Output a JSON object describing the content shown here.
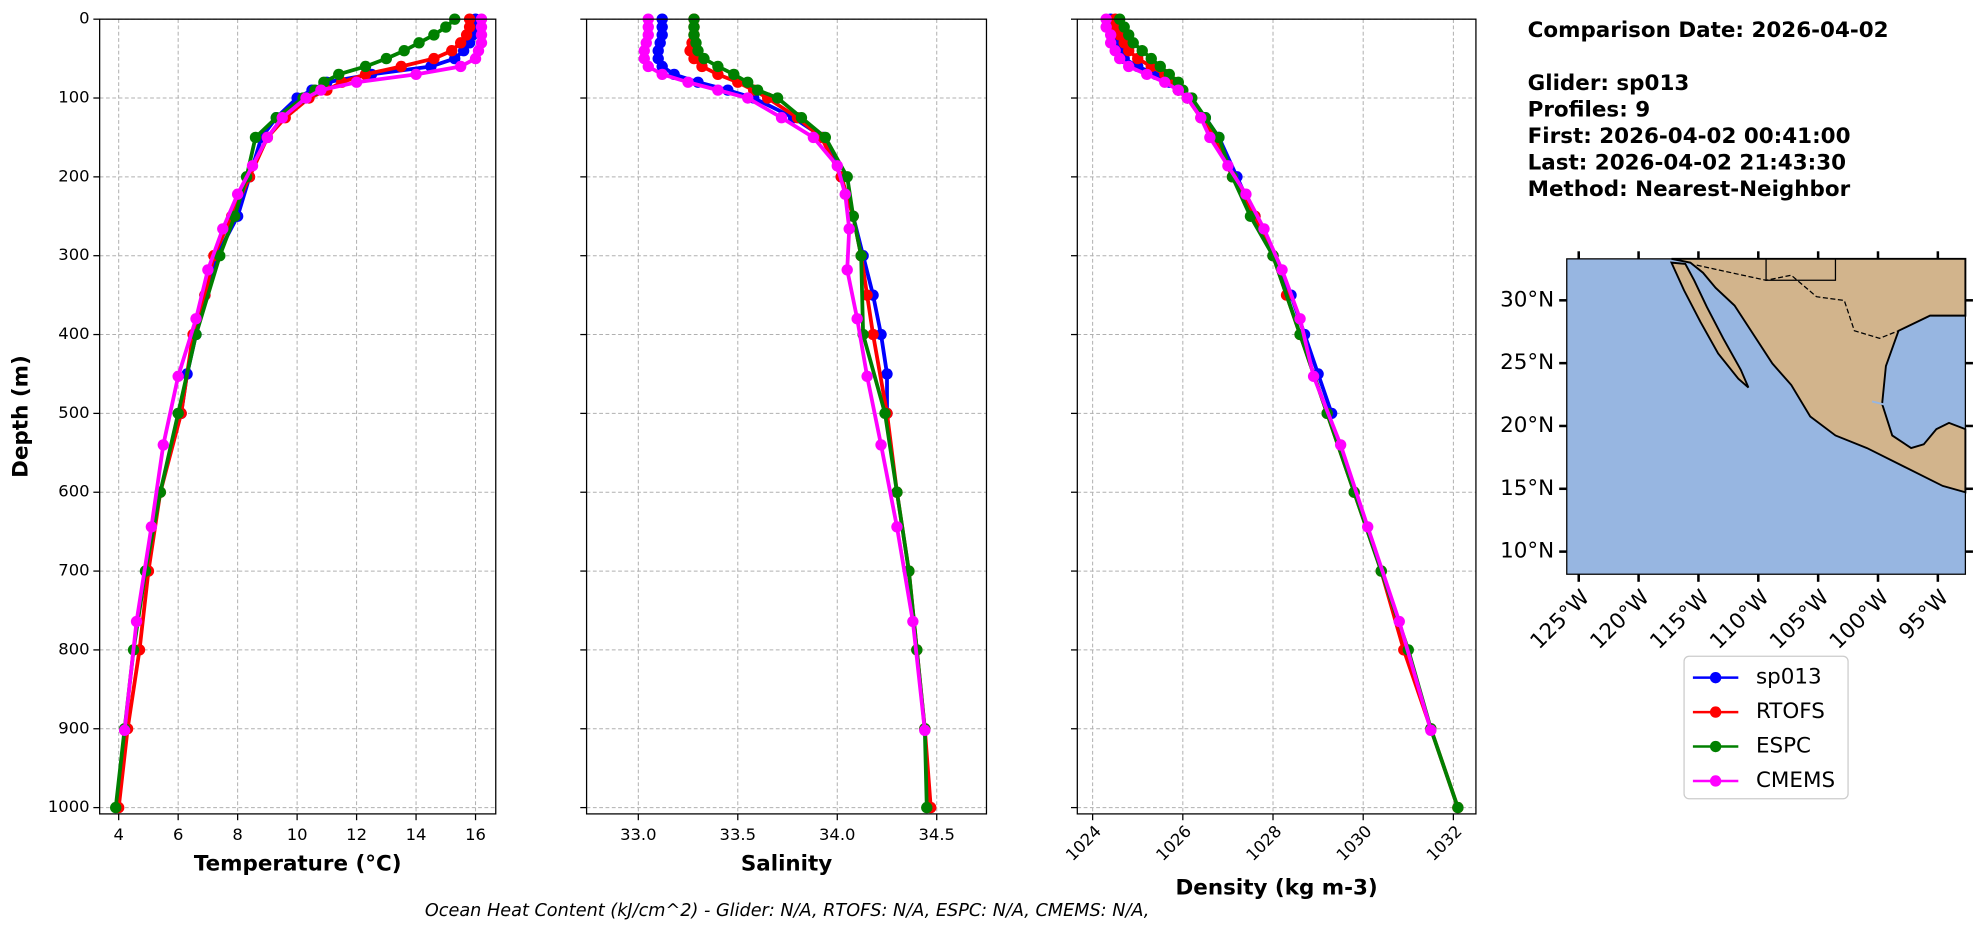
{
  "info": {
    "date": "Comparison Date: 2026-04-02",
    "lines": [
      "Glider: sp013",
      "Profiles: 9",
      "First: 2026-04-02 00:41:00",
      "Last: 2026-04-02 21:43:30",
      "Method: Nearest-Neighbor"
    ]
  },
  "footer": "Ocean Heat Content (kJ/cm^2) - Glider: N/A,  RTOFS: N/A,  ESPC: N/A,  CMEMS: N/A,",
  "legend": {
    "entries": [
      {
        "name": "sp013",
        "color": "#0000ff"
      },
      {
        "name": "RTOFS",
        "color": "#ff0000"
      },
      {
        "name": "ESPC",
        "color": "#008000"
      },
      {
        "name": "CMEMS",
        "color": "#ff00ff"
      }
    ]
  },
  "map": {
    "lonlim": [
      -126,
      -92.7
    ],
    "latlim": [
      8.2,
      33.3
    ],
    "lat_ticks": [
      {
        "value": 10,
        "label": "10°N"
      },
      {
        "value": 15,
        "label": "15°N"
      },
      {
        "value": 20,
        "label": "20°N"
      },
      {
        "value": 25,
        "label": "25°N"
      },
      {
        "value": 30,
        "label": "30°N"
      }
    ],
    "lon_ticks": [
      {
        "value": -125,
        "label": "125°W"
      },
      {
        "value": -120,
        "label": "120°W"
      },
      {
        "value": -115,
        "label": "115°W"
      },
      {
        "value": -110,
        "label": "110°W"
      },
      {
        "value": -105,
        "label": "105°W"
      },
      {
        "value": -100,
        "label": "100°W"
      },
      {
        "value": -95,
        "label": "95°W"
      }
    ]
  },
  "chart_data": [
    {
      "type": "line",
      "grid": true,
      "show_ytick_labels": true,
      "xlabel": "Temperature (°C)",
      "ylabel": "Depth (m)",
      "xlim": [
        3.36,
        16.68
      ],
      "ylim": [
        1008,
        0
      ],
      "xticks": [
        4,
        6,
        8,
        10,
        12,
        14,
        16
      ],
      "yticks": [
        0,
        100,
        200,
        300,
        400,
        500,
        600,
        700,
        800,
        900,
        1000
      ],
      "series": [
        {
          "depth": [
            0,
            10,
            20,
            30,
            40,
            50,
            60,
            70,
            80,
            90,
            100,
            125,
            150,
            200,
            250,
            300,
            350,
            400,
            450,
            500
          ],
          "values": [
            16.0,
            16.0,
            15.9,
            15.8,
            15.6,
            15.3,
            14.5,
            12.5,
            11.0,
            10.5,
            10.0,
            9.3,
            8.8,
            8.4,
            8.0,
            7.3,
            6.9,
            6.6,
            6.3,
            6.1
          ]
        },
        {
          "depth": [
            0,
            10,
            20,
            30,
            40,
            50,
            60,
            70,
            80,
            90,
            100,
            125,
            150,
            200,
            250,
            300,
            350,
            400,
            500,
            600,
            700,
            800,
            900,
            1000
          ],
          "values": [
            15.8,
            15.8,
            15.7,
            15.5,
            15.2,
            14.6,
            13.5,
            12.3,
            11.5,
            11.0,
            10.4,
            9.6,
            9.0,
            8.4,
            7.8,
            7.2,
            6.9,
            6.5,
            6.1,
            5.4,
            5.0,
            4.7,
            4.3,
            4.0
          ]
        },
        {
          "depth": [
            0,
            10,
            20,
            30,
            40,
            50,
            60,
            70,
            80,
            90,
            100,
            125,
            150,
            200,
            250,
            300,
            400,
            500,
            600,
            700,
            800,
            900,
            1000
          ],
          "values": [
            15.3,
            15.0,
            14.6,
            14.1,
            13.6,
            13.0,
            12.3,
            11.4,
            10.9,
            10.6,
            10.2,
            9.3,
            8.6,
            8.3,
            7.9,
            7.4,
            6.6,
            6.0,
            5.4,
            4.9,
            4.5,
            4.2,
            3.9
          ]
        },
        {
          "depth": [
            0,
            10,
            20,
            30,
            40,
            50,
            60,
            70,
            80,
            90,
            100,
            125,
            150,
            186,
            222,
            266,
            318,
            380,
            453,
            540,
            644,
            764,
            902
          ],
          "values": [
            16.2,
            16.2,
            16.2,
            16.2,
            16.1,
            16.0,
            15.5,
            14.0,
            12.0,
            10.8,
            10.3,
            9.5,
            9.0,
            8.5,
            8.0,
            7.5,
            7.0,
            6.6,
            6.0,
            5.5,
            5.1,
            4.6,
            4.2
          ]
        }
      ]
    },
    {
      "type": "line",
      "grid": true,
      "show_ytick_labels": false,
      "xlabel": "Salinity",
      "xlim": [
        32.74,
        34.75
      ],
      "ylim": [
        1008,
        0
      ],
      "xticks": [
        {
          "value": 33,
          "label": "33.0"
        },
        33.5,
        {
          "value": 34,
          "label": "34.0"
        },
        34.5
      ],
      "yticks": [
        0,
        100,
        200,
        300,
        400,
        500,
        600,
        700,
        800,
        900,
        1000
      ],
      "series": [
        {
          "depth": [
            0,
            10,
            20,
            30,
            40,
            50,
            60,
            70,
            80,
            90,
            100,
            125,
            150,
            200,
            250,
            300,
            350,
            400,
            450,
            500
          ],
          "values": [
            33.12,
            33.12,
            33.12,
            33.11,
            33.1,
            33.1,
            33.12,
            33.18,
            33.3,
            33.45,
            33.58,
            33.78,
            33.93,
            34.02,
            34.08,
            34.13,
            34.18,
            34.22,
            34.25,
            34.25
          ]
        },
        {
          "depth": [
            0,
            10,
            20,
            30,
            40,
            50,
            60,
            70,
            80,
            90,
            100,
            125,
            150,
            200,
            250,
            300,
            350,
            400,
            500,
            600,
            700,
            800,
            900,
            1000
          ],
          "values": [
            33.28,
            33.28,
            33.28,
            33.27,
            33.26,
            33.28,
            33.32,
            33.4,
            33.5,
            33.58,
            33.65,
            33.8,
            33.92,
            34.02,
            34.08,
            34.12,
            34.15,
            34.18,
            34.25,
            34.3,
            34.36,
            34.4,
            34.44,
            34.47
          ]
        },
        {
          "depth": [
            0,
            10,
            20,
            30,
            40,
            50,
            60,
            70,
            80,
            90,
            100,
            125,
            150,
            200,
            250,
            300,
            400,
            500,
            600,
            700,
            800,
            900,
            1000
          ],
          "values": [
            33.28,
            33.28,
            33.28,
            33.29,
            33.3,
            33.33,
            33.4,
            33.48,
            33.55,
            33.6,
            33.7,
            33.82,
            33.94,
            34.05,
            34.08,
            34.12,
            34.13,
            34.24,
            34.3,
            34.36,
            34.4,
            34.44,
            34.45
          ]
        },
        {
          "depth": [
            0,
            10,
            20,
            30,
            40,
            50,
            60,
            70,
            80,
            90,
            100,
            125,
            150,
            186,
            222,
            266,
            318,
            380,
            453,
            540,
            644,
            764,
            902
          ],
          "values": [
            33.05,
            33.05,
            33.05,
            33.04,
            33.03,
            33.03,
            33.05,
            33.12,
            33.25,
            33.4,
            33.55,
            33.72,
            33.88,
            34.0,
            34.04,
            34.06,
            34.05,
            34.1,
            34.15,
            34.22,
            34.3,
            34.38,
            34.44
          ]
        }
      ]
    },
    {
      "type": "line",
      "grid": true,
      "show_ytick_labels": false,
      "xlabel": "Density (kg m-3)",
      "xlim": [
        1023.66,
        1032.5
      ],
      "ylim": [
        1008,
        0
      ],
      "xticks": [
        1024,
        1026,
        1028,
        1030,
        1032
      ],
      "yticks": [
        0,
        100,
        200,
        300,
        400,
        500,
        600,
        700,
        800,
        900,
        1000
      ],
      "series": [
        {
          "depth": [
            0,
            10,
            20,
            30,
            40,
            50,
            60,
            70,
            80,
            90,
            100,
            125,
            150,
            200,
            250,
            300,
            350,
            400,
            450,
            500
          ],
          "values": [
            1024.4,
            1024.4,
            1024.5,
            1024.5,
            1024.6,
            1024.7,
            1025.0,
            1025.4,
            1025.7,
            1025.9,
            1026.1,
            1026.5,
            1026.8,
            1027.2,
            1027.6,
            1028.0,
            1028.4,
            1028.7,
            1029.0,
            1029.3
          ]
        },
        {
          "depth": [
            0,
            10,
            20,
            30,
            40,
            50,
            60,
            70,
            80,
            90,
            100,
            125,
            150,
            200,
            250,
            300,
            350,
            400,
            500,
            600,
            700,
            800,
            900,
            1000
          ],
          "values": [
            1024.5,
            1024.5,
            1024.6,
            1024.7,
            1024.8,
            1025.0,
            1025.3,
            1025.6,
            1025.8,
            1025.9,
            1026.1,
            1026.4,
            1026.7,
            1027.1,
            1027.6,
            1028.0,
            1028.3,
            1028.6,
            1029.2,
            1029.8,
            1030.4,
            1030.9,
            1031.5,
            1032.1
          ]
        },
        {
          "depth": [
            0,
            10,
            20,
            30,
            40,
            50,
            60,
            70,
            80,
            90,
            100,
            125,
            150,
            200,
            250,
            300,
            400,
            500,
            600,
            700,
            800,
            900,
            1000
          ],
          "values": [
            1024.6,
            1024.7,
            1024.8,
            1024.9,
            1025.1,
            1025.3,
            1025.5,
            1025.7,
            1025.9,
            1026.0,
            1026.2,
            1026.5,
            1026.8,
            1027.1,
            1027.5,
            1028.0,
            1028.6,
            1029.2,
            1029.8,
            1030.4,
            1031.0,
            1031.5,
            1032.1
          ]
        },
        {
          "depth": [
            0,
            10,
            20,
            30,
            40,
            50,
            60,
            70,
            80,
            90,
            100,
            125,
            150,
            186,
            222,
            266,
            318,
            380,
            453,
            540,
            644,
            764,
            902
          ],
          "values": [
            1024.3,
            1024.3,
            1024.4,
            1024.4,
            1024.5,
            1024.6,
            1024.8,
            1025.2,
            1025.6,
            1025.9,
            1026.1,
            1026.4,
            1026.6,
            1027.0,
            1027.4,
            1027.8,
            1028.2,
            1028.6,
            1028.9,
            1029.5,
            1030.1,
            1030.8,
            1031.5
          ]
        }
      ]
    }
  ]
}
